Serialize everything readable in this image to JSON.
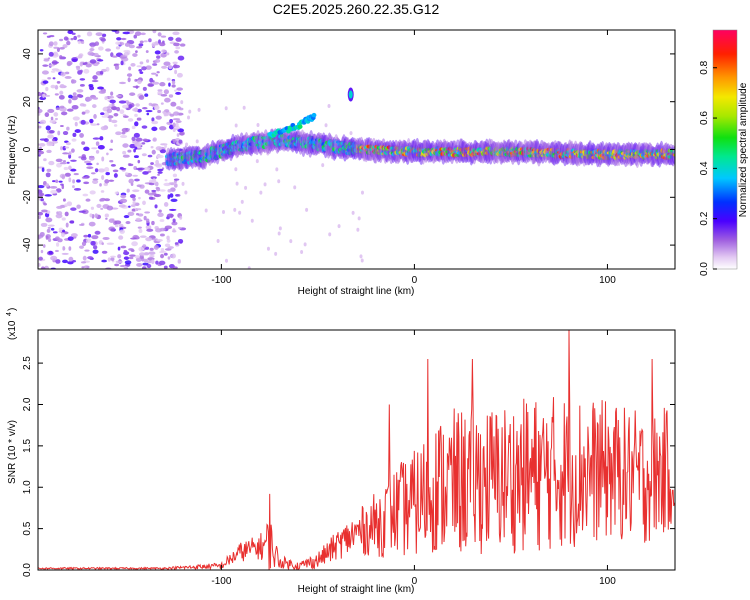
{
  "title": "C2E5.2025.260.22.35.G12",
  "chart_data": [
    {
      "type": "heatmap",
      "panel": "spectrogram",
      "xlabel": "Height of straight line (km)",
      "ylabel": "Frequency (Hz)",
      "xlim": [
        -195,
        135
      ],
      "ylim": [
        -50,
        50
      ],
      "xticks": [
        -100,
        0,
        100
      ],
      "yticks": [
        -40,
        -20,
        0,
        20,
        40
      ],
      "colorbar": {
        "label": "Normalized spectral amplitude",
        "ticks": [
          0.0,
          0.2,
          0.4,
          0.6,
          0.8
        ],
        "range": [
          0,
          0.95
        ]
      },
      "features": {
        "noise_region_x": [
          -195,
          -120
        ],
        "main_trace": [
          {
            "x": -128,
            "f": -4
          },
          {
            "x": -110,
            "f": -3
          },
          {
            "x": -90,
            "f": 2
          },
          {
            "x": -70,
            "f": 4
          },
          {
            "x": -50,
            "f": 2
          },
          {
            "x": -30,
            "f": 0
          },
          {
            "x": 0,
            "f": -1
          },
          {
            "x": 50,
            "f": -1
          },
          {
            "x": 100,
            "f": -2
          },
          {
            "x": 135,
            "f": -2
          }
        ],
        "upper_branch": [
          {
            "x": -75,
            "f": 6
          },
          {
            "x": -60,
            "f": 10
          },
          {
            "x": -52,
            "f": 14
          }
        ],
        "isolated_blob": {
          "x": -33,
          "f": 23
        }
      }
    },
    {
      "type": "line",
      "panel": "snr",
      "xlabel": "Height of straight line (km)",
      "ylabel": "SNR (10 * v/v)",
      "y_multiplier": "(x10",
      "y_multiplier_exp": "4",
      "multiplier_close": ")",
      "xlim": [
        -195,
        135
      ],
      "ylim": [
        0,
        2.9
      ],
      "xticks": [
        -100,
        0,
        100
      ],
      "yticks": [
        "0.0",
        "0.5",
        "1.0",
        "1.5",
        "2.0",
        "2.5"
      ],
      "series_color": "#e8302f",
      "envelope": {
        "x": [
          -195,
          -130,
          -100,
          -90,
          -80,
          -75,
          -70,
          -60,
          -50,
          -40,
          -30,
          -20,
          -10,
          0,
          10,
          20,
          40,
          60,
          80,
          100,
          120,
          135
        ],
        "mean": [
          0.02,
          0.02,
          0.05,
          0.22,
          0.28,
          0.33,
          0.1,
          0.05,
          0.12,
          0.3,
          0.45,
          0.55,
          0.7,
          0.8,
          1.0,
          1.05,
          1.1,
          1.15,
          1.2,
          1.2,
          1.1,
          1.25
        ],
        "amplitude": [
          0.01,
          0.01,
          0.04,
          0.12,
          0.15,
          0.35,
          0.08,
          0.05,
          0.1,
          0.18,
          0.25,
          0.4,
          0.55,
          0.65,
          0.8,
          0.9,
          0.9,
          0.95,
          0.95,
          0.85,
          0.8,
          0.75
        ]
      },
      "peaks": [
        {
          "x": 80,
          "y": 2.9
        },
        {
          "x": 7,
          "y": 2.55
        },
        {
          "x": 30,
          "y": 2.55
        },
        {
          "x": 123,
          "y": 2.55
        },
        {
          "x": -75,
          "y": 0.92
        },
        {
          "x": -13,
          "y": 2.0
        }
      ]
    }
  ]
}
